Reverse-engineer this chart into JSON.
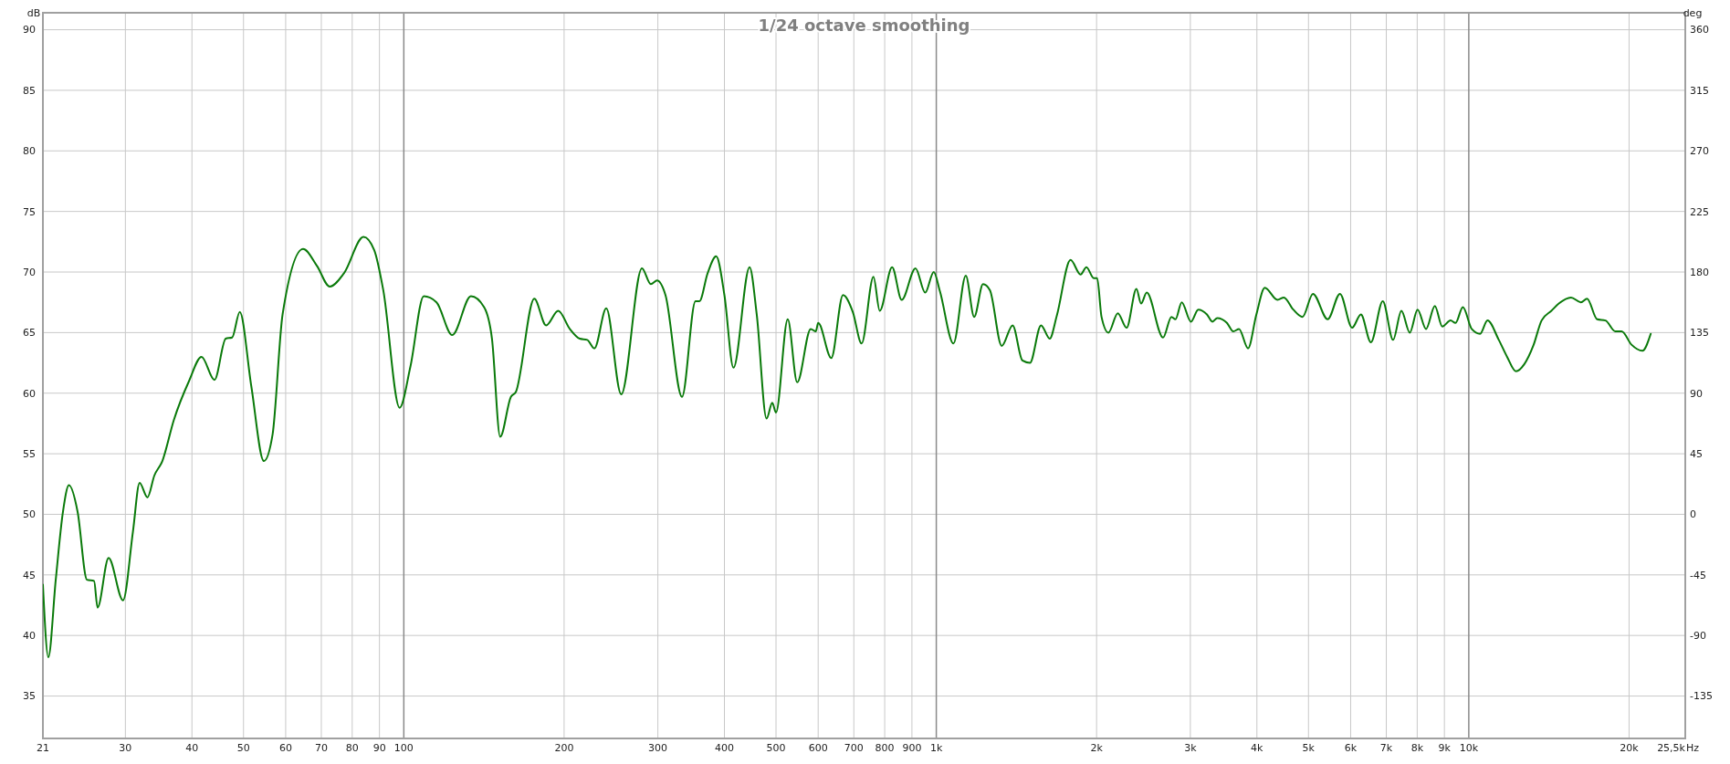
{
  "chart_data": {
    "type": "line",
    "title": "1/24 octave smoothing",
    "ylabel": "dB",
    "y2label": "deg",
    "log": "x",
    "grid": true,
    "xlim": [
      21,
      25500
    ],
    "xticks": [
      21,
      30,
      40,
      50,
      60,
      70,
      80,
      90,
      100,
      200,
      300,
      400,
      500,
      600,
      700,
      800,
      900,
      {
        "value": 1000,
        "label": "1k"
      },
      {
        "value": 2000,
        "label": "2k"
      },
      {
        "value": 3000,
        "label": "3k"
      },
      {
        "value": 4000,
        "label": "4k"
      },
      {
        "value": 5000,
        "label": "5k"
      },
      {
        "value": 6000,
        "label": "6k"
      },
      {
        "value": 7000,
        "label": "7k"
      },
      {
        "value": 8000,
        "label": "8k"
      },
      {
        "value": 9000,
        "label": "9k"
      },
      {
        "value": 10000,
        "label": "10k"
      },
      {
        "value": 20000,
        "label": "20k"
      },
      {
        "value": 25500,
        "label": "25,5k"
      }
    ],
    "xlabel": "Hz",
    "ylim": [
      31.5,
      91.4
    ],
    "yticks": [
      35,
      40,
      45,
      50,
      55,
      60,
      65,
      70,
      75,
      80,
      85,
      90
    ],
    "y2lim": [
      -166.5,
      372.6
    ],
    "y2ticks": [
      -135,
      -90,
      -45,
      0,
      45,
      90,
      135,
      180,
      225,
      270,
      315,
      360
    ],
    "series": [
      {
        "color": "#0a7a0a",
        "x": [
          21,
          21.5,
          22.2,
          22.9,
          23.5,
          24.4,
          25.4,
          26.2,
          26.6,
          27.9,
          29.7,
          31,
          31.9,
          33,
          34,
          35.2,
          37,
          39.5,
          41.7,
          44.1,
          46.3,
          47.6,
          49.2,
          51.7,
          54.6,
          56.7,
          59.2,
          64.7,
          68.7,
          72.6,
          77.2,
          84,
          88,
          91.5,
          98.2,
          102.9,
          109,
          115.2,
          123.3,
          133.7,
          141.5,
          146.4,
          151.7,
          158.9,
          162.3,
          175.8,
          185,
          195,
          205,
          214,
          221,
          228,
          240,
          256,
          280,
          291,
          299,
          310,
          333,
          353,
          359,
          372,
          386,
          400,
          416,
          446,
          460,
          480,
          492,
          500,
          526,
          548,
          581,
          594,
          600,
          635,
          668,
          697,
          724,
          762,
          783,
          826,
          861,
          914,
          953,
          989,
          1016,
          1077,
          1136,
          1178,
          1224,
          1261,
          1327,
          1391,
          1451,
          1499,
          1573,
          1633,
          1684,
          1787,
          1866,
          1914,
          1975,
          2005,
          2043,
          2105,
          2192,
          2277,
          2376,
          2424,
          2484,
          2666,
          2764,
          2813,
          2890,
          3007,
          3104,
          3223,
          3300,
          3370,
          3514,
          3612,
          3703,
          3850,
          3991,
          4139,
          4373,
          4495,
          4682,
          4873,
          5097,
          5433,
          5729,
          6038,
          6272,
          6548,
          6894,
          7209,
          7472,
          7749,
          8014,
          8312,
          8636,
          8917,
          9244,
          9442,
          9748,
          10128,
          10501,
          10842,
          11385,
          11802,
          12263,
          12716,
          13213,
          13700,
          14292,
          14760,
          15557,
          16235,
          16680,
          17418,
          18060,
          18841,
          19367,
          20213,
          21183,
          21960
        ],
        "values": [
          44.2,
          38.2,
          44.6,
          50.2,
          52.4,
          50.2,
          44.6,
          44.5,
          42.3,
          46.4,
          42.9,
          48.6,
          52.6,
          51.4,
          53.2,
          54.4,
          57.8,
          61,
          63,
          61.1,
          64.5,
          64.6,
          66.7,
          60.6,
          54.4,
          56.6,
          66.5,
          71.9,
          70.5,
          68.8,
          69.9,
          72.9,
          71.8,
          68.5,
          58.8,
          62.2,
          68,
          67.5,
          64.8,
          68,
          67.1,
          64.5,
          56.4,
          59.7,
          60.1,
          67.8,
          65.6,
          66.8,
          65.3,
          64.5,
          64.4,
          63.7,
          67,
          59.9,
          70.3,
          69,
          69.3,
          68.1,
          59.7,
          67.6,
          67.6,
          69.9,
          71.3,
          68.1,
          62.1,
          70.4,
          66.5,
          57.9,
          59.2,
          58.4,
          66.1,
          60.9,
          65.3,
          65.1,
          65.8,
          62.9,
          68.1,
          66.7,
          64.1,
          69.6,
          66.8,
          70.4,
          67.7,
          70.3,
          68.3,
          70,
          68.4,
          64.1,
          69.7,
          66.3,
          69,
          68.5,
          63.9,
          65.6,
          62.7,
          62.5,
          65.6,
          64.5,
          66.4,
          71,
          69.8,
          70.4,
          69.5,
          69.5,
          66.3,
          65,
          66.6,
          65.4,
          68.6,
          67.4,
          68.3,
          64.6,
          66.3,
          66.1,
          67.5,
          65.9,
          66.9,
          66.5,
          65.9,
          66.2,
          65.8,
          65.1,
          65.3,
          63.7,
          66.5,
          68.7,
          67.7,
          67.9,
          66.9,
          66.3,
          68.2,
          66.1,
          68.2,
          65.4,
          66.5,
          64.2,
          67.6,
          64.4,
          66.8,
          65,
          66.9,
          65.3,
          67.2,
          65.5,
          66,
          65.8,
          67.1,
          65.3,
          64.9,
          66,
          64.4,
          63,
          61.8,
          62.4,
          63.9,
          66,
          66.8,
          67.4,
          67.9,
          67.5,
          67.8,
          66.1,
          66,
          65.1,
          65.1,
          64,
          63.5,
          64.9
        ]
      }
    ]
  }
}
